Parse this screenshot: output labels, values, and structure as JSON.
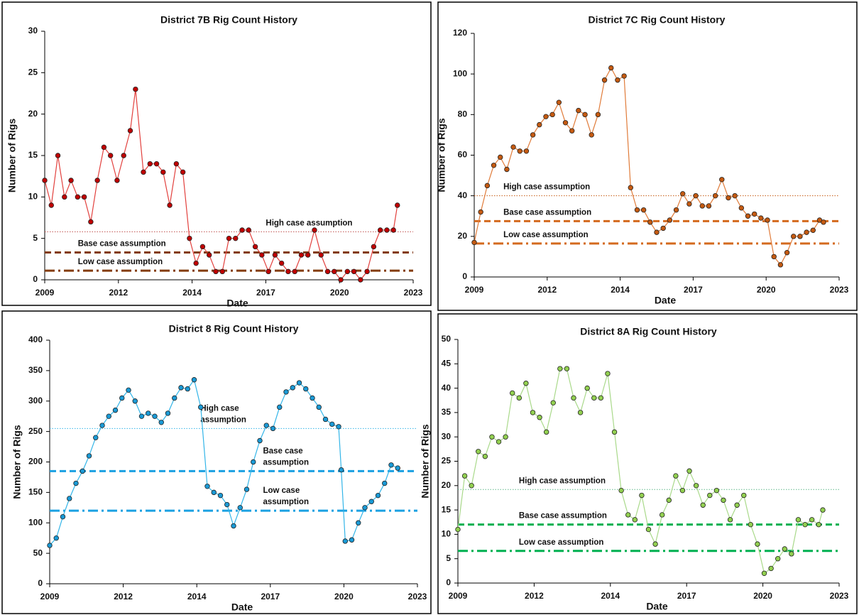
{
  "chart_data": [
    {
      "type": "line",
      "title": "District 7B Rig Count History",
      "x_label": "Date",
      "y_label": "Number of Rigs",
      "x": [
        2009,
        2009.25,
        2009.5,
        2009.75,
        2010,
        2010.25,
        2010.5,
        2010.75,
        2011,
        2011.25,
        2011.5,
        2011.75,
        2012,
        2012.25,
        2012.45,
        2012.75,
        2013,
        2013.25,
        2013.5,
        2013.75,
        2014,
        2014.25,
        2014.5,
        2014.75,
        2015,
        2015.25,
        2015.5,
        2015.75,
        2016,
        2016.25,
        2016.5,
        2016.75,
        2017,
        2017.25,
        2017.5,
        2017.75,
        2018,
        2018.25,
        2018.5,
        2018.75,
        2019,
        2019.25,
        2019.5,
        2019.75,
        2020,
        2020.25,
        2020.5,
        2020.75,
        2021,
        2021.25,
        2021.5,
        2021.75,
        2022,
        2022.25,
        2022.4
      ],
      "series": [
        {
          "color": "#e2403d",
          "marker_color": "#c00000",
          "values": [
            12,
            9,
            15,
            10,
            12,
            10,
            10,
            7,
            12,
            16,
            15,
            12,
            15,
            18,
            23,
            13,
            14,
            14,
            13,
            9,
            14,
            13,
            5,
            2,
            4,
            3,
            1,
            1,
            5,
            5,
            6,
            6,
            4,
            3,
            1,
            3,
            2,
            1,
            1,
            3,
            3,
            6,
            3,
            1,
            1,
            0,
            1,
            1,
            0,
            1,
            4,
            6,
            6,
            6,
            9
          ]
        }
      ],
      "reference_lines": [
        {
          "label": [
            "High case assumption"
          ],
          "value": 5.8,
          "color": "#c0504d",
          "style": "dotted"
        },
        {
          "label": [
            "Base case assumption"
          ],
          "value": 3.3,
          "color": "#843c0c",
          "style": "dashed"
        },
        {
          "label": [
            "Low case assumption"
          ],
          "value": 1.1,
          "color": "#843c0c",
          "style": "dashdot"
        }
      ],
      "xlim": [
        2009,
        2023
      ],
      "xticks": [
        2009,
        {
          "value": 2011.8,
          "label": "2012"
        },
        {
          "value": 2014.6,
          "label": "2014"
        },
        {
          "value": 2017.4,
          "label": "2017"
        },
        {
          "value": 2020.2,
          "label": "2020"
        },
        2023
      ],
      "ylim": [
        0,
        30
      ],
      "yticks": [
        0,
        5,
        10,
        15,
        20,
        25,
        30
      ]
    },
    {
      "type": "line",
      "title": "District 7C Rig Count History",
      "x_label": "Date",
      "y_label": "Number of Rigs",
      "x": [
        2009,
        2009.25,
        2009.5,
        2009.75,
        2010,
        2010.25,
        2010.5,
        2010.75,
        2011,
        2011.25,
        2011.5,
        2011.75,
        2012,
        2012.25,
        2012.5,
        2012.75,
        2013,
        2013.25,
        2013.5,
        2013.75,
        2014,
        2014.25,
        2014.5,
        2014.75,
        2015,
        2015.25,
        2015.5,
        2015.75,
        2016,
        2016.25,
        2016.5,
        2016.75,
        2017,
        2017.25,
        2017.5,
        2017.75,
        2018,
        2018.25,
        2018.5,
        2018.75,
        2019,
        2019.25,
        2019.5,
        2019.75,
        2020,
        2020.25,
        2020.5,
        2020.75,
        2021,
        2021.25,
        2021.5,
        2021.75,
        2022,
        2022.25,
        2022.4
      ],
      "series": [
        {
          "color": "#e07b39",
          "marker_color": "#c55a11",
          "values": [
            17,
            32,
            45,
            55,
            59,
            53,
            64,
            62,
            62,
            70,
            75,
            79,
            80,
            86,
            76,
            72,
            82,
            80,
            70,
            80,
            97,
            103,
            97,
            99,
            44,
            33,
            33,
            27,
            22,
            24,
            28,
            33,
            41,
            36,
            40,
            35,
            35,
            40,
            48,
            39,
            40,
            34,
            30,
            31,
            29,
            28,
            10,
            6,
            12,
            20,
            20,
            22,
            23,
            28,
            27
          ]
        }
      ],
      "reference_lines": [
        {
          "label": [
            "High case assumption"
          ],
          "value": 40,
          "color": "#c55a11",
          "style": "dotted"
        },
        {
          "label": [
            "Base case assumption"
          ],
          "value": 27.5,
          "color": "#d46a1e",
          "style": "dashed"
        },
        {
          "label": [
            "Low case assumption"
          ],
          "value": 16.5,
          "color": "#d46a1e",
          "style": "dashdot"
        }
      ],
      "xlim": [
        2009,
        2023
      ],
      "xticks": [
        2009,
        {
          "value": 2011.8,
          "label": "2012"
        },
        {
          "value": 2014.6,
          "label": "2014"
        },
        {
          "value": 2017.4,
          "label": "2017"
        },
        {
          "value": 2020.2,
          "label": "2020"
        },
        2023
      ],
      "ylim": [
        0,
        120
      ],
      "yticks": [
        0,
        20,
        40,
        60,
        80,
        100,
        120
      ]
    },
    {
      "type": "line",
      "title": "District 8 Rig Count History",
      "x_label": "Date",
      "y_label": "Number of Rigs",
      "x": [
        2009,
        2009.25,
        2009.5,
        2009.75,
        2010,
        2010.25,
        2010.5,
        2010.75,
        2011,
        2011.25,
        2011.5,
        2011.75,
        2012,
        2012.25,
        2012.5,
        2012.75,
        2013,
        2013.25,
        2013.5,
        2013.75,
        2014,
        2014.25,
        2014.5,
        2014.75,
        2015,
        2015.25,
        2015.5,
        2015.75,
        2016,
        2016.25,
        2016.5,
        2016.75,
        2017,
        2017.25,
        2017.5,
        2017.75,
        2018,
        2018.25,
        2018.5,
        2018.75,
        2019,
        2019.25,
        2019.5,
        2019.75,
        2020,
        2020.1,
        2020.25,
        2020.5,
        2020.75,
        2021,
        2021.25,
        2021.5,
        2021.75,
        2022,
        2022.25
      ],
      "series": [
        {
          "color": "#33b5e8",
          "marker_color": "#1a9ad6",
          "values": [
            63,
            75,
            110,
            140,
            165,
            185,
            210,
            240,
            260,
            275,
            285,
            305,
            318,
            300,
            275,
            280,
            275,
            265,
            280,
            305,
            322,
            320,
            335,
            290,
            160,
            150,
            145,
            130,
            95,
            125,
            155,
            200,
            235,
            260,
            255,
            290,
            315,
            322,
            330,
            320,
            305,
            290,
            270,
            262,
            258,
            187,
            70,
            72,
            100,
            125,
            135,
            145,
            165,
            195,
            190
          ]
        }
      ],
      "reference_lines": [
        {
          "label": [
            "High case",
            "assumption"
          ],
          "value": 255,
          "color": "#33b5e8",
          "style": "dotted"
        },
        {
          "label": [
            "Base case",
            "assumption"
          ],
          "value": 185,
          "color": "#1ba1e2",
          "style": "dashed"
        },
        {
          "label": [
            "Low case",
            "assumption"
          ],
          "value": 120,
          "color": "#1ba1e2",
          "style": "dashdot"
        }
      ],
      "xlim": [
        2009,
        2023
      ],
      "xticks": [
        2009,
        {
          "value": 2011.8,
          "label": "2012"
        },
        {
          "value": 2014.6,
          "label": "2014"
        },
        {
          "value": 2017.4,
          "label": "2017"
        },
        {
          "value": 2020.2,
          "label": "2020"
        },
        2023
      ],
      "ylim": [
        0,
        400
      ],
      "yticks": [
        0,
        50,
        100,
        150,
        200,
        250,
        300,
        350,
        400
      ]
    },
    {
      "type": "line",
      "title": "District 8A Rig Count History",
      "x_label": "Date",
      "y_label": "Number of Rigs",
      "x": [
        2009,
        2009.25,
        2009.5,
        2009.75,
        2010,
        2010.25,
        2010.5,
        2010.75,
        2011,
        2011.25,
        2011.5,
        2011.75,
        2012,
        2012.25,
        2012.5,
        2012.75,
        2013,
        2013.25,
        2013.5,
        2013.75,
        2014,
        2014.25,
        2014.5,
        2014.75,
        2015,
        2015.25,
        2015.5,
        2015.75,
        2016,
        2016.25,
        2016.5,
        2016.75,
        2017,
        2017.25,
        2017.5,
        2017.75,
        2018,
        2018.25,
        2018.5,
        2018.75,
        2019,
        2019.25,
        2019.5,
        2019.75,
        2020,
        2020.25,
        2020.5,
        2020.75,
        2021,
        2021.25,
        2021.5,
        2021.75,
        2022,
        2022.25,
        2022.4
      ],
      "series": [
        {
          "color": "#a9d98a",
          "marker_color": "#92d050",
          "values": [
            11,
            22,
            20,
            27,
            26,
            30,
            29,
            30,
            39,
            38,
            41,
            35,
            34,
            31,
            37,
            44,
            44,
            38,
            35,
            40,
            38,
            38,
            43,
            31,
            19,
            14,
            13,
            18,
            11,
            8,
            14,
            17,
            22,
            19,
            23,
            20,
            16,
            18,
            19,
            17,
            13,
            16,
            18,
            12,
            8,
            2,
            3,
            5,
            7,
            6,
            13,
            12,
            13,
            12,
            15
          ]
        }
      ],
      "reference_lines": [
        {
          "label": [
            "High case assumption"
          ],
          "value": 19.2,
          "color": "#5fb88a",
          "style": "dotted"
        },
        {
          "label": [
            "Base case assumption"
          ],
          "value": 12,
          "color": "#00b050",
          "style": "dashed"
        },
        {
          "label": [
            "Low case assumption"
          ],
          "value": 6.6,
          "color": "#00b050",
          "style": "dashdot"
        }
      ],
      "xlim": [
        2009,
        2023
      ],
      "xticks": [
        2009,
        {
          "value": 2011.8,
          "label": "2012"
        },
        {
          "value": 2014.6,
          "label": "2014"
        },
        {
          "value": 2017.4,
          "label": "2017"
        },
        {
          "value": 2020.2,
          "label": "2020"
        },
        2023
      ],
      "ylim": [
        0,
        50
      ],
      "yticks": [
        0,
        5,
        10,
        15,
        20,
        25,
        30,
        35,
        40,
        45,
        50
      ]
    }
  ]
}
